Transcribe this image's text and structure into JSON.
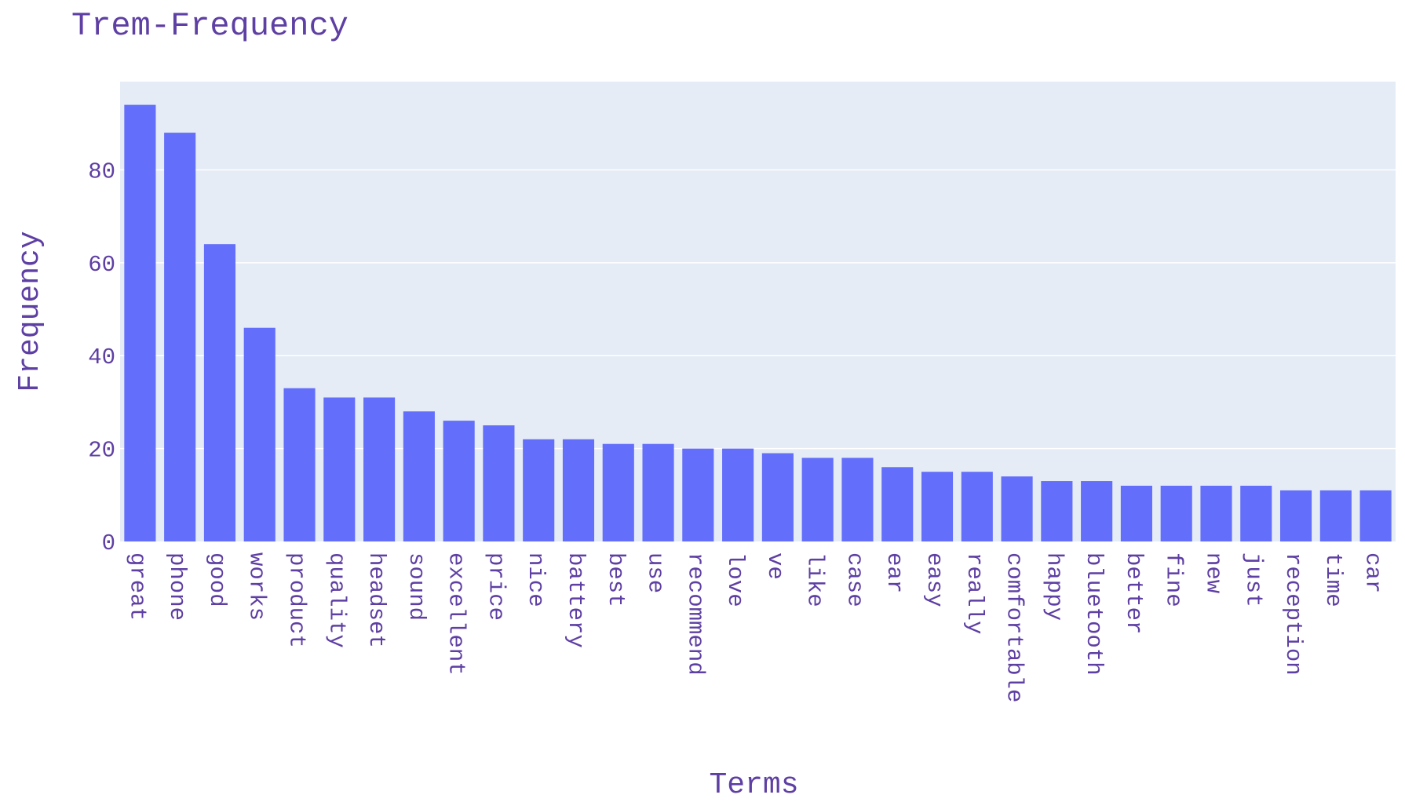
{
  "chart_data": {
    "type": "bar",
    "title": "Trem-Frequency",
    "xlabel": "Terms",
    "ylabel": "Frequency",
    "ylim": [
      0,
      99
    ],
    "yticks": [
      0,
      20,
      40,
      60,
      80
    ],
    "grid": true,
    "bar_color": "#636efa",
    "plot_bg": "#e5ecf6",
    "text_color": "#5e3fa3",
    "categories": [
      "great",
      "phone",
      "good",
      "works",
      "product",
      "quality",
      "headset",
      "sound",
      "excellent",
      "price",
      "nice",
      "battery",
      "best",
      "use",
      "recommend",
      "love",
      "ve",
      "like",
      "case",
      "ear",
      "easy",
      "really",
      "comfortable",
      "happy",
      "bluetooth",
      "better",
      "fine",
      "new",
      "just",
      "reception",
      "time",
      "car"
    ],
    "values": [
      94,
      88,
      64,
      46,
      33,
      31,
      31,
      28,
      26,
      25,
      22,
      22,
      21,
      21,
      20,
      20,
      19,
      18,
      18,
      16,
      15,
      15,
      14,
      13,
      13,
      12,
      12,
      12,
      12,
      11,
      11,
      11
    ]
  }
}
